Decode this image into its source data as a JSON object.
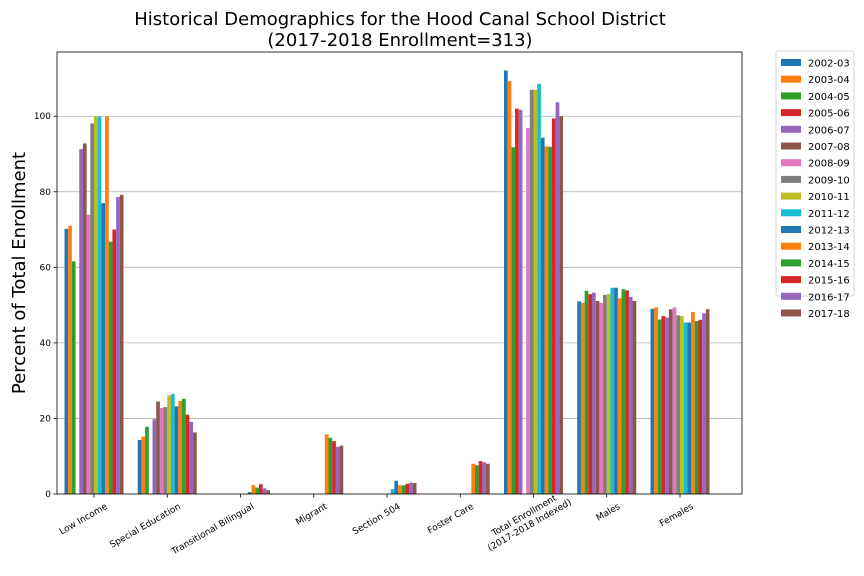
{
  "chart_data": {
    "type": "bar",
    "title": "Historical Demographics for the Hood Canal School District",
    "subtitle": "(2017-2018 Enrollment=313)",
    "xlabel": "",
    "ylabel": "Percent of Total Enrollment",
    "ylim": [
      0,
      117
    ],
    "yticks": [
      0,
      20,
      40,
      60,
      80,
      100
    ],
    "grid": "y",
    "legend_position": "outside-right",
    "categories": [
      "Low Income",
      "Special Education",
      "Transitional Bilingual",
      "Migrant",
      "Section 504",
      "Foster Care",
      "Total Enrollment\n(2017-2018 Indexed)",
      "Males",
      "Females"
    ],
    "series": [
      {
        "name": "2002-03",
        "color": "#1f77b4",
        "values": [
          70.2,
          14.3,
          0,
          0,
          0,
          0,
          112.1,
          51.0,
          49.0
        ]
      },
      {
        "name": "2003-04",
        "color": "#ff7f0e",
        "values": [
          71.0,
          15.2,
          0,
          0,
          0,
          0,
          109.3,
          50.6,
          49.4
        ]
      },
      {
        "name": "2004-05",
        "color": "#2ca02c",
        "values": [
          61.6,
          17.8,
          0,
          0,
          0,
          0,
          91.8,
          53.8,
          46.2
        ]
      },
      {
        "name": "2005-06",
        "color": "#d62728",
        "values": [
          0,
          0,
          0,
          0,
          0,
          0,
          102.0,
          52.9,
          47.1
        ]
      },
      {
        "name": "2006-07",
        "color": "#9467bd",
        "values": [
          91.3,
          19.8,
          0,
          0,
          0,
          0,
          101.7,
          53.3,
          46.7
        ]
      },
      {
        "name": "2007-08",
        "color": "#8c564b",
        "values": [
          92.8,
          24.5,
          0,
          0,
          0,
          0,
          0,
          51.1,
          48.9
        ]
      },
      {
        "name": "2008-09",
        "color": "#e377c2",
        "values": [
          73.9,
          22.8,
          0,
          0,
          0,
          0,
          96.9,
          50.6,
          49.4
        ]
      },
      {
        "name": "2009-10",
        "color": "#7f7f7f",
        "values": [
          98.1,
          23.0,
          0,
          0,
          0,
          0,
          107.0,
          52.7,
          47.3
        ]
      },
      {
        "name": "2010-11",
        "color": "#bcbd22",
        "values": [
          99.9,
          26.1,
          0,
          0,
          0,
          0,
          107.0,
          52.9,
          47.1
        ]
      },
      {
        "name": "2011-12",
        "color": "#17becf",
        "values": [
          99.9,
          26.5,
          0,
          0,
          1.3,
          0,
          108.6,
          54.6,
          45.4
        ]
      },
      {
        "name": "2012-13",
        "color": "#1f77b4",
        "values": [
          77.0,
          23.2,
          0.5,
          0,
          3.5,
          0,
          94.3,
          54.6,
          45.4
        ]
      },
      {
        "name": "2013-14",
        "color": "#ff7f0e",
        "values": [
          99.9,
          24.6,
          2.4,
          15.8,
          2.3,
          8.0,
          92.0,
          51.8,
          48.2
        ]
      },
      {
        "name": "2014-15",
        "color": "#2ca02c",
        "values": [
          66.8,
          25.2,
          1.7,
          14.9,
          2.3,
          7.6,
          91.9,
          54.2,
          45.8
        ]
      },
      {
        "name": "2015-16",
        "color": "#d62728",
        "values": [
          70.0,
          21.0,
          2.6,
          14.0,
          2.7,
          8.7,
          99.4,
          53.9,
          46.1
        ]
      },
      {
        "name": "2016-17",
        "color": "#9467bd",
        "values": [
          78.6,
          19.1,
          1.5,
          12.5,
          3.0,
          8.4,
          103.7,
          52.2,
          47.8
        ]
      },
      {
        "name": "2017-18",
        "color": "#8c564b",
        "values": [
          79.2,
          16.3,
          1.0,
          12.8,
          2.9,
          8.0,
          100.0,
          51.1,
          48.9
        ]
      }
    ]
  }
}
